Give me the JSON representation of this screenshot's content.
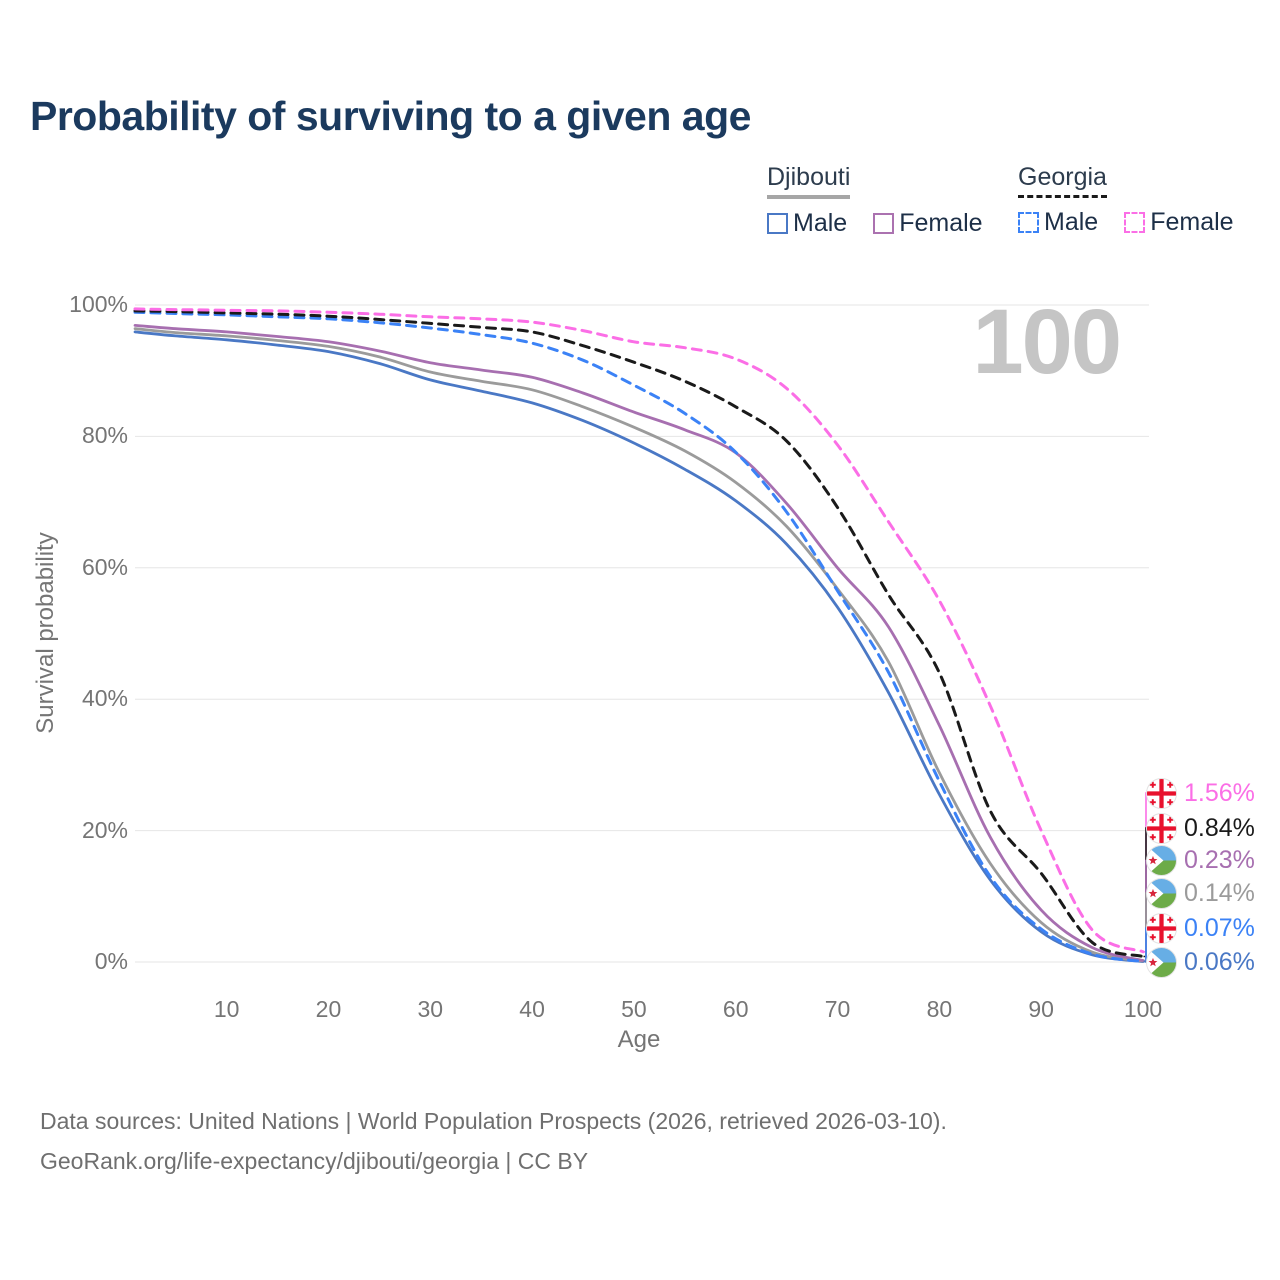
{
  "header": {
    "title": "Probability of surviving to a given age"
  },
  "watermark": "100",
  "legend": {
    "groups": [
      {
        "title": "Djibouti",
        "line_style": "solid",
        "line_color": "#a6a6a6",
        "items": [
          {
            "label": "Male",
            "color": "#4a78c5",
            "box_style": "solid"
          },
          {
            "label": "Female",
            "color": "#ab72b0",
            "box_style": "solid"
          }
        ]
      },
      {
        "title": "Georgia",
        "line_style": "dashed",
        "line_color": "#1a1a1a",
        "items": [
          {
            "label": "Male",
            "color": "#3b82f6",
            "box_style": "dashed"
          },
          {
            "label": "Female",
            "color": "#fb6ee6",
            "box_style": "dashed"
          }
        ]
      }
    ]
  },
  "chart_data": {
    "type": "line",
    "title": "Probability of surviving to a given age",
    "xlabel": "Age",
    "ylabel": "Survival probability",
    "xlim": [
      1,
      100
    ],
    "ylim": [
      0,
      100
    ],
    "x_ticks": [
      10,
      20,
      30,
      40,
      50,
      60,
      70,
      80,
      90,
      100
    ],
    "y_ticks": [
      0,
      20,
      40,
      60,
      80,
      100
    ],
    "y_tick_suffix": "%",
    "grid": "horizontal",
    "legend_position": "top-right",
    "series": [
      {
        "name": "Djibouti Male",
        "country": "Djibouti",
        "sex": "Male",
        "style": "solid",
        "color": "#4a78c5",
        "flag": "djibouti",
        "end_label": "0.06%",
        "points": [
          [
            1,
            95.9
          ],
          [
            5,
            95.3
          ],
          [
            10,
            94.7
          ],
          [
            15,
            93.9
          ],
          [
            20,
            92.9
          ],
          [
            25,
            91.1
          ],
          [
            30,
            88.6
          ],
          [
            35,
            86.9
          ],
          [
            40,
            85.1
          ],
          [
            45,
            82.4
          ],
          [
            50,
            79.0
          ],
          [
            55,
            75.0
          ],
          [
            60,
            70.2
          ],
          [
            65,
            63.6
          ],
          [
            70,
            54.0
          ],
          [
            75,
            41.0
          ],
          [
            80,
            25.5
          ],
          [
            85,
            12.5
          ],
          [
            90,
            4.6
          ],
          [
            95,
            1.1
          ],
          [
            100,
            0.06
          ]
        ]
      },
      {
        "name": "Djibouti",
        "country": "Djibouti",
        "sex": "Both",
        "style": "solid",
        "color": "#9b9b9b",
        "flag": "djibouti",
        "end_label": "0.14%",
        "points": [
          [
            1,
            96.4
          ],
          [
            5,
            95.8
          ],
          [
            10,
            95.3
          ],
          [
            15,
            94.6
          ],
          [
            20,
            93.7
          ],
          [
            25,
            92.1
          ],
          [
            30,
            89.8
          ],
          [
            35,
            88.4
          ],
          [
            40,
            87.1
          ],
          [
            45,
            84.5
          ],
          [
            50,
            81.4
          ],
          [
            55,
            77.8
          ],
          [
            60,
            73.0
          ],
          [
            65,
            66.3
          ],
          [
            70,
            56.8
          ],
          [
            75,
            45.7
          ],
          [
            80,
            28.8
          ],
          [
            85,
            15.0
          ],
          [
            90,
            6.0
          ],
          [
            95,
            1.5
          ],
          [
            100,
            0.14
          ]
        ]
      },
      {
        "name": "Djibouti Female",
        "country": "Djibouti",
        "sex": "Female",
        "style": "solid",
        "color": "#a76fb0",
        "flag": "djibouti",
        "end_label": "0.23%",
        "points": [
          [
            1,
            96.9
          ],
          [
            5,
            96.4
          ],
          [
            10,
            95.9
          ],
          [
            15,
            95.2
          ],
          [
            20,
            94.4
          ],
          [
            25,
            93.0
          ],
          [
            30,
            91.2
          ],
          [
            35,
            90.1
          ],
          [
            40,
            89.0
          ],
          [
            45,
            86.6
          ],
          [
            50,
            83.7
          ],
          [
            55,
            81.0
          ],
          [
            60,
            77.5
          ],
          [
            65,
            69.8
          ],
          [
            70,
            60.0
          ],
          [
            75,
            51.0
          ],
          [
            80,
            36.0
          ],
          [
            85,
            19.0
          ],
          [
            90,
            7.9
          ],
          [
            95,
            2.2
          ],
          [
            100,
            0.23
          ]
        ]
      },
      {
        "name": "Georgia Male",
        "country": "Georgia",
        "sex": "Male",
        "style": "dashed",
        "color": "#3b82f6",
        "flag": "georgia",
        "end_label": "0.07%",
        "points": [
          [
            1,
            98.9
          ],
          [
            5,
            98.7
          ],
          [
            10,
            98.5
          ],
          [
            15,
            98.2
          ],
          [
            20,
            97.9
          ],
          [
            25,
            97.3
          ],
          [
            30,
            96.5
          ],
          [
            35,
            95.5
          ],
          [
            40,
            94.2
          ],
          [
            45,
            91.6
          ],
          [
            50,
            87.8
          ],
          [
            55,
            83.5
          ],
          [
            60,
            77.6
          ],
          [
            65,
            68.5
          ],
          [
            70,
            56.5
          ],
          [
            75,
            44.1
          ],
          [
            80,
            27.5
          ],
          [
            85,
            13.0
          ],
          [
            90,
            5.0
          ],
          [
            95,
            1.2
          ],
          [
            100,
            0.07
          ]
        ]
      },
      {
        "name": "Georgia",
        "country": "Georgia",
        "sex": "Both",
        "style": "dashed",
        "color": "#1a1a1a",
        "flag": "georgia",
        "end_label": "0.84%",
        "points": [
          [
            1,
            99.1
          ],
          [
            5,
            99.0
          ],
          [
            10,
            98.8
          ],
          [
            15,
            98.6
          ],
          [
            20,
            98.3
          ],
          [
            25,
            97.8
          ],
          [
            30,
            97.2
          ],
          [
            35,
            96.6
          ],
          [
            40,
            95.9
          ],
          [
            45,
            93.8
          ],
          [
            50,
            91.3
          ],
          [
            55,
            88.4
          ],
          [
            60,
            84.5
          ],
          [
            65,
            79.3
          ],
          [
            70,
            69.2
          ],
          [
            75,
            55.9
          ],
          [
            80,
            44.0
          ],
          [
            85,
            23.0
          ],
          [
            90,
            13.5
          ],
          [
            95,
            3.0
          ],
          [
            100,
            0.84
          ]
        ]
      },
      {
        "name": "Georgia Female",
        "country": "Georgia",
        "sex": "Female",
        "style": "dashed",
        "color": "#fb6ee6",
        "flag": "georgia",
        "end_label": "1.56%",
        "points": [
          [
            1,
            99.4
          ],
          [
            5,
            99.3
          ],
          [
            10,
            99.2
          ],
          [
            15,
            99.1
          ],
          [
            20,
            98.9
          ],
          [
            25,
            98.6
          ],
          [
            30,
            98.2
          ],
          [
            35,
            97.9
          ],
          [
            40,
            97.4
          ],
          [
            45,
            96.1
          ],
          [
            50,
            94.4
          ],
          [
            55,
            93.5
          ],
          [
            60,
            91.8
          ],
          [
            65,
            87.3
          ],
          [
            70,
            78.7
          ],
          [
            75,
            67.0
          ],
          [
            80,
            55.0
          ],
          [
            85,
            39.0
          ],
          [
            90,
            20.0
          ],
          [
            95,
            4.9
          ],
          [
            100,
            1.56
          ]
        ]
      }
    ]
  },
  "footer": {
    "line1": "Data sources: United Nations | World Population Prospects (2026, retrieved 2026-03-10).",
    "line2": "GeoRank.org/life-expectancy/djibouti/georgia | CC BY"
  },
  "colors": {
    "title": "#1b3a5e",
    "axis_text": "#757575",
    "grid": "#e6e6e6",
    "watermark": "#c5c5c5",
    "djibouti_male": "#4a78c5",
    "djibouti_both": "#9b9b9b",
    "djibouti_female": "#a76fb0",
    "georgia_male": "#3b82f6",
    "georgia_both": "#1a1a1a",
    "georgia_female": "#fb6ee6",
    "flag_red": "#d7253c",
    "flag_blue": "#67aee5",
    "flag_green": "#6dab48"
  }
}
